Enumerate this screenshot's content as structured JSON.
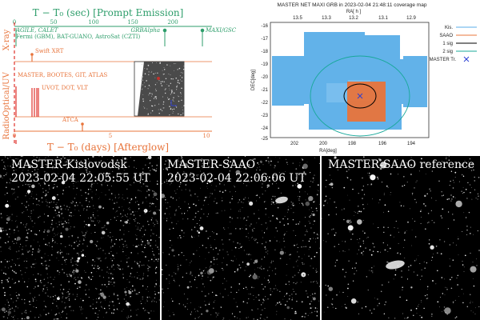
{
  "timeline": {
    "top_title": "T − T₀ (sec) [Prompt Emission]",
    "top_ticks": [
      "0",
      "50",
      "100",
      "150",
      "200"
    ],
    "bottom_title": "T − T₀ (days) [Afterglow]",
    "bottom_ticks": [
      "0",
      "5",
      "10"
    ],
    "rows": {
      "xray": "X-ray",
      "optuv": "Optical/UV",
      "radio": "Radio"
    },
    "labels": {
      "agile": "AGILE, CALET",
      "fermi": "Fermi (GBM), BAT-GUANO, AstroSat (CZTI)",
      "grbalpha": "GRBAlpha",
      "maxi": "MAXI/GSC",
      "swift": "Swift XRT",
      "master": "MASTER, BOOTES, GIT, ATLAS",
      "uvot": "UVOT, DOT, VLT",
      "atca": "ATCA"
    },
    "colors": {
      "green": "#2e9e6b",
      "orange": "#e8743b",
      "red": "#e0302a"
    }
  },
  "coverage": {
    "title": "MASTER NET MAXI GRB in 2023-02-04 21:48:11 coverage map",
    "ra_hours_label": "RA[ h ]",
    "ra_hours_ticks": [
      "13.5",
      "13.3",
      "13.2",
      "13.1",
      "12.9"
    ],
    "ra_deg_label": "RA[deg]",
    "ra_deg_ticks": [
      "202",
      "200",
      "198",
      "196",
      "194"
    ],
    "dec_label": "DEC[deg]",
    "dec_ticks": [
      "-16",
      "-17",
      "-18",
      "-19",
      "-20",
      "-21",
      "-22",
      "-23",
      "-24",
      "-25"
    ],
    "legend": [
      {
        "label": "Kis.",
        "color": "#5aaee8"
      },
      {
        "label": "SAAO",
        "color": "#e8743b"
      },
      {
        "label": "1 sig",
        "color": "#000000"
      },
      {
        "label": "2 sig",
        "color": "#18a89a"
      },
      {
        "label": "MASTER Tr.",
        "color": "#2a3fd4"
      }
    ]
  },
  "images": [
    {
      "caption_line1": "MASTER-Kislovodsk",
      "caption_line2": "2023-02-04 22:05:55 UT"
    },
    {
      "caption_line1": "MASTER-SAAO",
      "caption_line2": "2023-02-04 22:06:06 UT"
    },
    {
      "caption_line1": "MASTER-SAAO reference",
      "caption_line2": ""
    }
  ]
}
